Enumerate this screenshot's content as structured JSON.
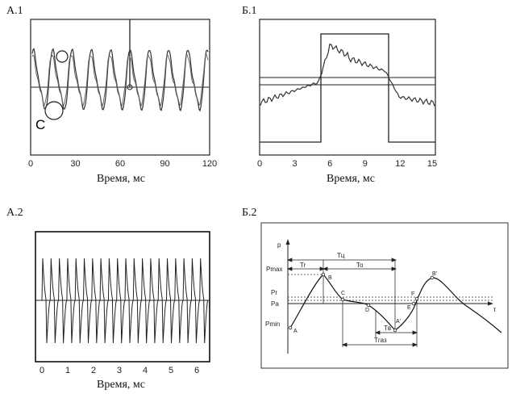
{
  "panels": {
    "a1": {
      "label": "А.1",
      "xlabel": "Время, мс",
      "ticks": [
        "0",
        "30",
        "60",
        "90",
        "120"
      ],
      "marker": "C"
    },
    "b1": {
      "label": "Б.1",
      "xlabel": "Время, мс",
      "ticks": [
        "0",
        "3",
        "6",
        "9",
        "12",
        "15"
      ]
    },
    "a2": {
      "label": "А.2",
      "xlabel": "Время, мс",
      "ticks": [
        "0",
        "1",
        "2",
        "3",
        "4",
        "5",
        "6"
      ]
    },
    "b2": {
      "label": "Б.2",
      "y_axis": "p",
      "x_axis": "τ",
      "levels": {
        "pmax": "Pmax",
        "pr": "Pr",
        "pa": "Pa",
        "pmin": "Pmin"
      },
      "points": {
        "A": "A",
        "B": "B",
        "C": "C",
        "D": "D",
        "Ap": "A'",
        "E": "E",
        "F": "F",
        "Bp": "B'"
      },
      "intervals": {
        "tc": "Tц",
        "tr": "Tr",
        "to": "To",
        "tv": "Tв",
        "tgaz": "Tгаз"
      }
    }
  },
  "chart_data": [
    {
      "type": "line",
      "panel": "А.1",
      "xlabel": "Время, мс",
      "xlim": [
        0,
        120
      ],
      "x_ticks": [
        0,
        30,
        60,
        90,
        120
      ],
      "series_count": 2,
      "annotation": "C"
    },
    {
      "type": "line",
      "panel": "Б.1",
      "xlabel": "Время, мс",
      "xlim": [
        0,
        15
      ],
      "x_ticks": [
        0,
        3,
        6,
        9,
        12,
        15
      ]
    },
    {
      "type": "line",
      "panel": "А.2",
      "xlabel": "Время, мс",
      "xlim": [
        0,
        6.5
      ],
      "x_ticks": [
        0,
        1,
        2,
        3,
        4,
        5,
        6
      ]
    }
  ]
}
